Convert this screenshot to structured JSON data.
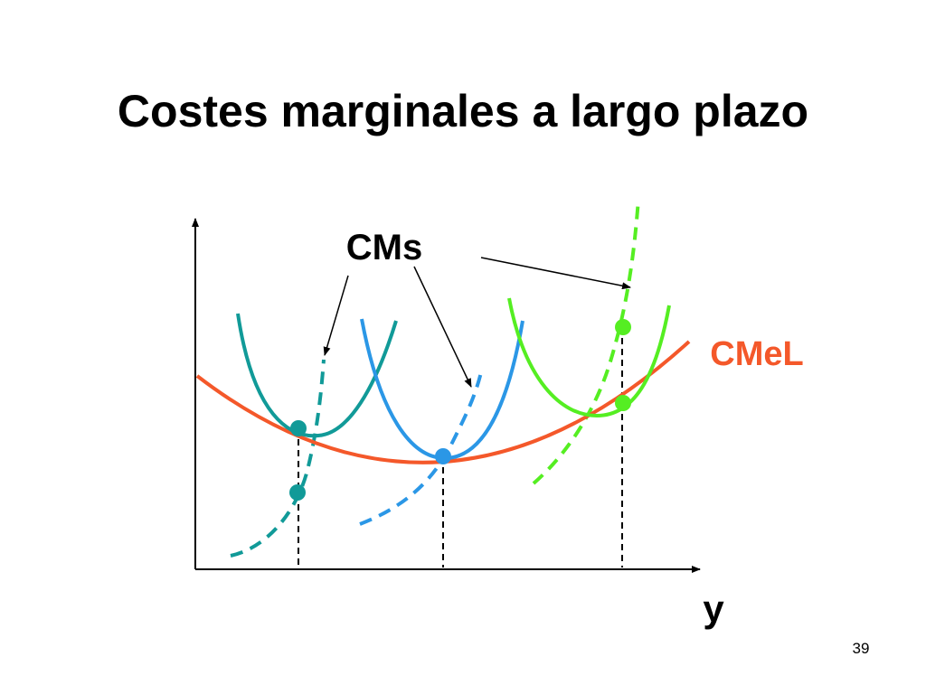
{
  "title": "Costes marginales a largo plazo",
  "labels": {
    "marginal_cost": "CMs",
    "long_run_average_cost": "CMeL",
    "x_axis": "y"
  },
  "page_number": "39"
}
